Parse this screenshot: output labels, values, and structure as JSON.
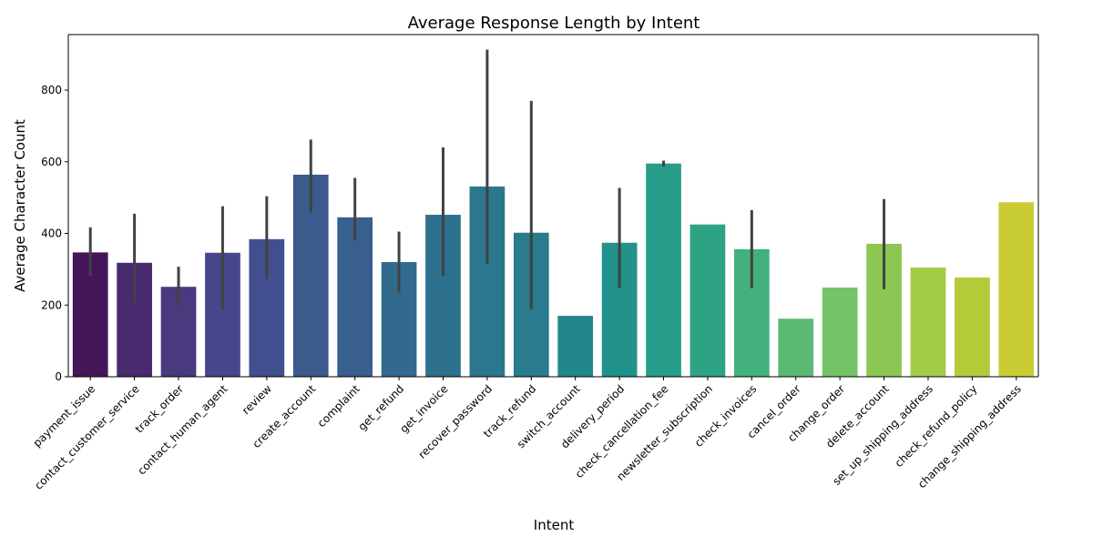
{
  "chart_data": {
    "type": "bar",
    "title": "Average Response Length by Intent",
    "xlabel": "Intent",
    "ylabel": "Average Character Count",
    "ylim": [
      0,
      955
    ],
    "yticks": [
      0,
      200,
      400,
      600,
      800
    ],
    "grid": false,
    "legend": "none",
    "categories": [
      "payment_issue",
      "contact_customer_service",
      "track_order",
      "contact_human_agent",
      "review",
      "create_account",
      "complaint",
      "get_refund",
      "get_invoice",
      "recover_password",
      "track_refund",
      "switch_account",
      "delivery_period",
      "check_cancellation_fee",
      "newsletter_subscription",
      "check_invoices",
      "cancel_order",
      "change_order",
      "delete_account",
      "set_up_shipping_address",
      "check_refund_policy",
      "change_shipping_address"
    ],
    "values": [
      347,
      318,
      251,
      346,
      384,
      564,
      445,
      320,
      452,
      531,
      402,
      170,
      374,
      595,
      425,
      356,
      162,
      249,
      371,
      305,
      277,
      487
    ],
    "error_low": [
      282,
      208,
      196,
      188,
      273,
      458,
      382,
      235,
      282,
      315,
      188,
      null,
      248,
      587,
      null,
      247,
      null,
      null,
      244,
      null,
      null,
      null
    ],
    "error_high": [
      417,
      455,
      307,
      476,
      504,
      662,
      555,
      405,
      640,
      913,
      770,
      null,
      527,
      603,
      null,
      465,
      null,
      null,
      496,
      null,
      null,
      null
    ],
    "colors": [
      "#45155a",
      "#482a6f",
      "#493a7f",
      "#47468a",
      "#424f8e",
      "#3b5a8d",
      "#385f8d",
      "#326a8e",
      "#2d718e",
      "#2b778e",
      "#287c8e",
      "#21878d",
      "#21918c",
      "#269d88",
      "#2ea383",
      "#43b17b",
      "#5ab972",
      "#74c367",
      "#8bc752",
      "#a1cc45",
      "#b3cb39",
      "#c9cc32"
    ]
  }
}
